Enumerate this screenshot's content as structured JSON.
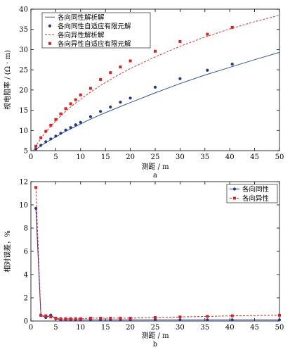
{
  "chart_data": [
    {
      "id": "a",
      "type": "line",
      "panel_label": "a",
      "xlabel": "测距 / m",
      "ylabel": "视电阻率 / (Ω · m)",
      "xlim": [
        0,
        50
      ],
      "ylim": [
        5,
        40
      ],
      "xticks": [
        0,
        5,
        10,
        15,
        20,
        25,
        30,
        35,
        40,
        45,
        50
      ],
      "yticks": [
        5,
        10,
        15,
        20,
        25,
        30,
        35,
        40
      ],
      "grid": false,
      "legend_position": "top-left",
      "series": [
        {
          "name": "各向同性解析解",
          "style": "solid-line",
          "color": "#3050a0",
          "x": [
            1,
            2,
            3,
            4,
            5,
            6,
            7,
            8,
            9,
            10,
            12,
            14,
            16,
            18,
            20,
            25,
            30,
            35,
            40,
            45,
            50
          ],
          "y": [
            5.3,
            6.2,
            7.0,
            7.7,
            8.4,
            9.1,
            9.8,
            10.4,
            11.0,
            11.6,
            12.8,
            13.9,
            14.9,
            15.9,
            16.9,
            19.3,
            21.6,
            23.7,
            25.6,
            27.5,
            29.3
          ]
        },
        {
          "name": "各向同性自适应有限元解",
          "style": "circle-markers",
          "color": "#1f3a8a",
          "x": [
            1,
            2,
            3,
            4,
            5,
            6,
            7,
            8,
            9,
            10,
            12,
            14,
            16,
            18,
            20,
            25,
            30,
            35.5,
            40.5
          ],
          "y": [
            5.4,
            6.3,
            7.2,
            7.9,
            8.6,
            9.3,
            10.1,
            10.7,
            11.4,
            12.0,
            13.4,
            14.7,
            15.8,
            17.0,
            18.0,
            20.7,
            22.8,
            24.9,
            26.4
          ]
        },
        {
          "name": "各向异性解析解",
          "style": "dashed-line",
          "color": "#e03030",
          "x": [
            0.5,
            1,
            2,
            3,
            4,
            5,
            6,
            7,
            8,
            9,
            10,
            12,
            14,
            16,
            18,
            20,
            25,
            30,
            35,
            40,
            45,
            50
          ],
          "y": [
            5.0,
            6.2,
            8.0,
            9.6,
            11.0,
            12.4,
            13.6,
            14.8,
            15.8,
            16.8,
            17.7,
            19.5,
            21.1,
            22.6,
            24.0,
            25.3,
            28.2,
            30.8,
            33.1,
            35.1,
            36.9,
            38.5
          ]
        },
        {
          "name": "各向异性自适应有限元解",
          "style": "square-markers",
          "color": "#e02020",
          "x": [
            1,
            2,
            3,
            4,
            5,
            6,
            7,
            8,
            9,
            10,
            12,
            14,
            16,
            18,
            20,
            25,
            30,
            35.5,
            40.5
          ],
          "y": [
            6.1,
            8.2,
            9.8,
            11.3,
            12.7,
            14.1,
            15.4,
            16.6,
            17.6,
            18.8,
            20.4,
            22.6,
            24.3,
            25.7,
            27.2,
            29.6,
            32.0,
            33.8,
            35.5
          ]
        }
      ]
    },
    {
      "id": "b",
      "type": "line",
      "panel_label": "b",
      "xlabel": "测距 / m",
      "ylabel": "相对误差，%",
      "xlim": [
        0,
        50
      ],
      "ylim": [
        0,
        12
      ],
      "xticks": [
        0,
        5,
        10,
        15,
        20,
        25,
        30,
        35,
        40,
        45,
        50
      ],
      "yticks": [
        0,
        2,
        4,
        6,
        8,
        10,
        12
      ],
      "grid": false,
      "legend_position": "top-right",
      "series": [
        {
          "name": "各向同性",
          "style": "solid-line-circle",
          "color": "#1f3a8a",
          "x": [
            1,
            2,
            3,
            4,
            5,
            6,
            7,
            8,
            9,
            10,
            12,
            14,
            16,
            18,
            20,
            25,
            30,
            35.5,
            40.5,
            50
          ],
          "y": [
            9.7,
            0.5,
            0.3,
            0.5,
            0.2,
            0.1,
            0.1,
            0.1,
            0.1,
            0.1,
            0.1,
            0.1,
            0.1,
            0.1,
            0.1,
            0.1,
            0.1,
            0.1,
            0.1,
            0.1
          ]
        },
        {
          "name": "各向异性",
          "style": "dashed-line-square",
          "color": "#e02020",
          "x": [
            1,
            2,
            3,
            4,
            5,
            6,
            7,
            8,
            9,
            10,
            12,
            14,
            16,
            18,
            20,
            25,
            30,
            35.5,
            40.5,
            50
          ],
          "y": [
            11.5,
            0.5,
            0.45,
            0.35,
            0.25,
            0.2,
            0.2,
            0.2,
            0.2,
            0.2,
            0.25,
            0.25,
            0.25,
            0.25,
            0.25,
            0.3,
            0.35,
            0.4,
            0.45,
            0.5
          ]
        }
      ]
    }
  ]
}
